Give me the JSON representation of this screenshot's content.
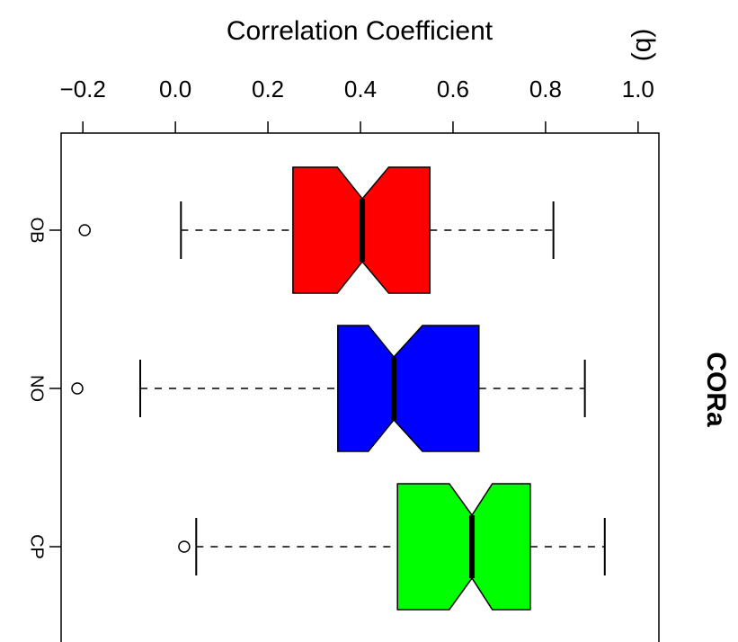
{
  "chart_data": {
    "type": "boxplot",
    "x_label": "Correlation Coefficient",
    "title": "CORa",
    "annotation": "(b)",
    "categories": [
      "OB",
      "NO",
      "CP"
    ],
    "colors": [
      "#ff0000",
      "#0000ff",
      "#00ff00"
    ],
    "boxes": [
      {
        "whisker_low": 0.012,
        "q1": 0.254,
        "notch_low": 0.35,
        "median": 0.404,
        "notch_high": 0.461,
        "q3": 0.55,
        "whisker_high": 0.817,
        "outliers": [
          -0.196
        ]
      },
      {
        "whisker_low": -0.076,
        "q1": 0.351,
        "notch_low": 0.417,
        "median": 0.472,
        "notch_high": 0.534,
        "q3": 0.656,
        "whisker_high": 0.885,
        "outliers": [
          -0.212
        ]
      },
      {
        "whisker_low": 0.045,
        "q1": 0.48,
        "notch_low": 0.592,
        "median": 0.641,
        "notch_high": 0.685,
        "q3": 0.767,
        "whisker_high": 0.928,
        "outliers": [
          0.019
        ]
      }
    ],
    "xlim": [
      -0.247,
      1.045
    ],
    "xticks": [
      {
        "value": -0.2,
        "label": "−0.2"
      },
      {
        "value": 0,
        "label": "0.0"
      },
      0.2,
      0.4,
      0.6,
      0.8,
      {
        "value": 1,
        "label": "1.0"
      }
    ]
  }
}
